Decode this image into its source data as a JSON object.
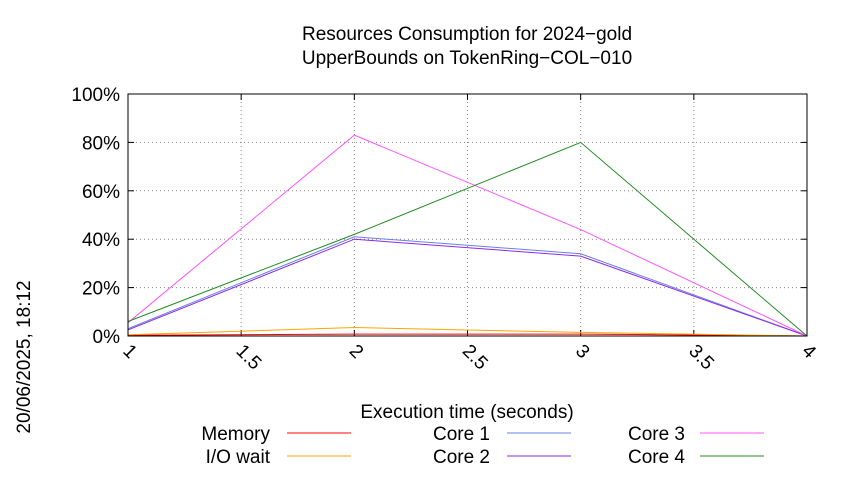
{
  "chart_data": {
    "type": "line",
    "title_line1": "Resources Consumption for 2024−gold",
    "title_line2": "UpperBounds on TokenRing−COL−010",
    "xlabel": "Execution time (seconds)",
    "ylabel": "",
    "side_label": "20/06/2025, 18:12",
    "xlim": [
      1,
      4
    ],
    "ylim": [
      0,
      100
    ],
    "grid": true,
    "x_ticks": [
      "1",
      "1.5",
      "2",
      "2.5",
      "3",
      "3.5",
      "4"
    ],
    "x_tick_values": [
      1,
      1.5,
      2,
      2.5,
      3,
      3.5,
      4
    ],
    "y_ticks": [
      "0%",
      "20%",
      "40%",
      "60%",
      "80%",
      "100%"
    ],
    "y_tick_values": [
      0,
      20,
      40,
      60,
      80,
      100
    ],
    "x": [
      1,
      2,
      3,
      4
    ],
    "series": [
      {
        "name": "Memory",
        "color": "#ff0000",
        "values": [
          0.3,
          0.8,
          0.8,
          0
        ]
      },
      {
        "name": "I/O wait",
        "color": "#ffa500",
        "values": [
          0.5,
          3.5,
          1.5,
          0
        ]
      },
      {
        "name": "Core 1",
        "color": "#6a7fe6",
        "values": [
          3,
          41,
          34,
          0
        ]
      },
      {
        "name": "Core 2",
        "color": "#8a2be2",
        "values": [
          2.5,
          40,
          33,
          0
        ]
      },
      {
        "name": "Core 3",
        "color": "#ff55ff",
        "values": [
          5.5,
          83,
          44,
          0
        ]
      },
      {
        "name": "Core 4",
        "color": "#228b22",
        "values": [
          6,
          42,
          80,
          0
        ]
      }
    ],
    "legend_position": "bottom"
  }
}
